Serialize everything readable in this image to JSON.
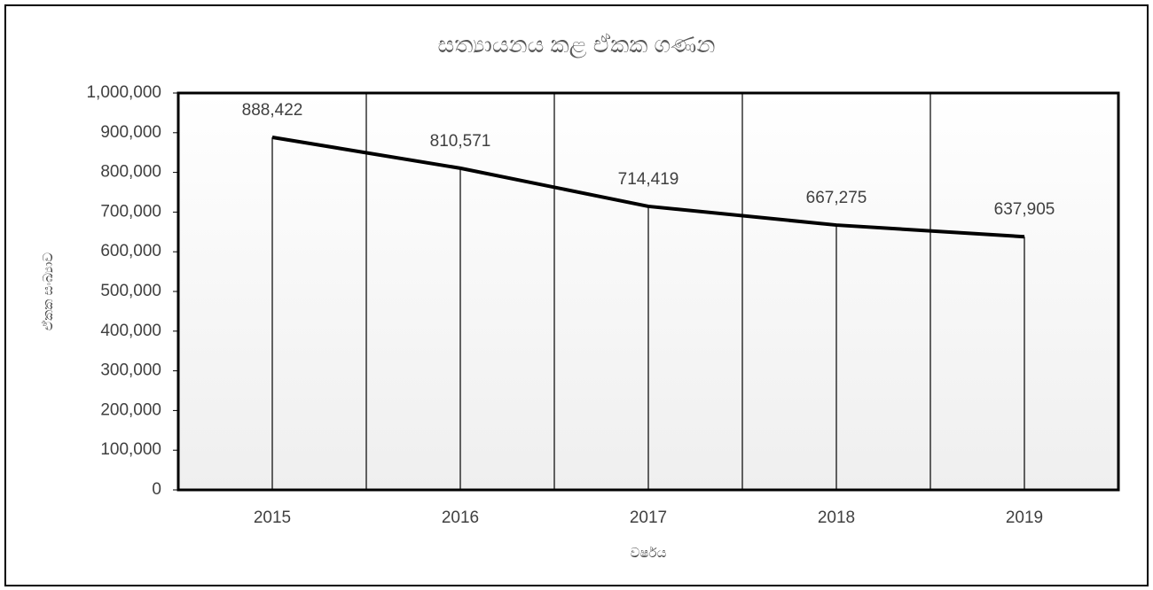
{
  "chart_data": {
    "type": "line",
    "title": "සත්‍යායනය කළ ඒකක ගණන",
    "x_label": "වර්ෂය",
    "y_label": "ඒකක සංඛ්‍යාව",
    "categories": [
      "2015",
      "2016",
      "2017",
      "2018",
      "2019"
    ],
    "values": [
      888422,
      810571,
      714419,
      667275,
      637905
    ],
    "value_labels": [
      "888,422",
      "810,571",
      "714,419",
      "667,275",
      "637,905"
    ],
    "color": "#000000",
    "ylim": [
      0,
      1000000
    ],
    "yticks": [
      0,
      {
        "value": 100000,
        "label": "100,000"
      },
      {
        "value": 200000,
        "label": "200,000"
      },
      {
        "value": 300000,
        "label": "300,000"
      },
      {
        "value": 400000,
        "label": "400,000"
      },
      {
        "value": 500000,
        "label": "500,000"
      },
      {
        "value": 600000,
        "label": "600,000"
      },
      {
        "value": 700000,
        "label": "700,000"
      },
      {
        "value": 800000,
        "label": "800,000"
      },
      {
        "value": 900000,
        "label": "900,000"
      },
      {
        "value": 1000000,
        "label": "1,000,000"
      }
    ],
    "drop_lines": true
  }
}
